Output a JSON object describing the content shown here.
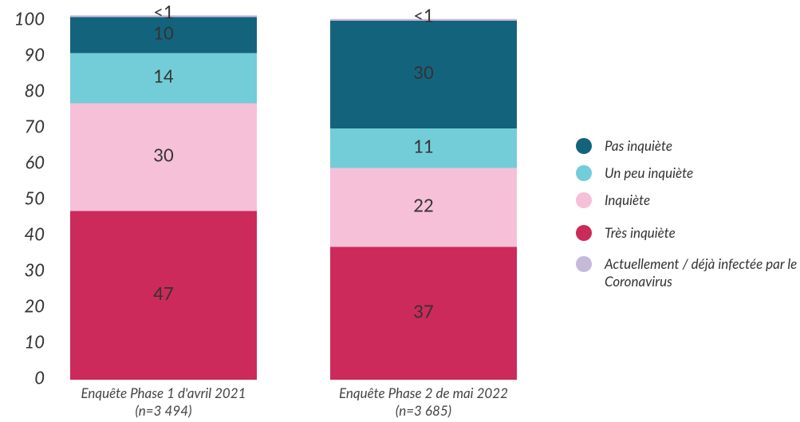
{
  "chart_data": {
    "type": "stacked_bar",
    "categories": [
      "Enquête Phase 1 d'avril 2021 (n=3 494)",
      "Enquête Phase 2 de mai 2022 (n=3 685)"
    ],
    "series": [
      {
        "name": "Très inquiète",
        "color": "#cc2a5a",
        "values": [
          47,
          37
        ]
      },
      {
        "name": "Inquiète",
        "color": "#f6c0d9",
        "values": [
          30,
          22
        ]
      },
      {
        "name": "Un peu inquiète",
        "color": "#72cdd8",
        "values": [
          14,
          11
        ]
      },
      {
        "name": "Pas inquiète",
        "color": "#14637c",
        "values": [
          10,
          30
        ]
      },
      {
        "name": "Actuellement / déjà infectée par le Coronavirus",
        "color": "#c5b9da",
        "values": [
          0.5,
          0.5
        ],
        "value_labels": [
          "<1",
          "<1"
        ]
      }
    ],
    "legend_order": [
      3,
      2,
      1,
      0,
      4
    ],
    "ylim": [
      0,
      100
    ],
    "yticks": [
      0,
      10,
      20,
      30,
      40,
      50,
      60,
      70,
      80,
      90,
      100
    ]
  }
}
